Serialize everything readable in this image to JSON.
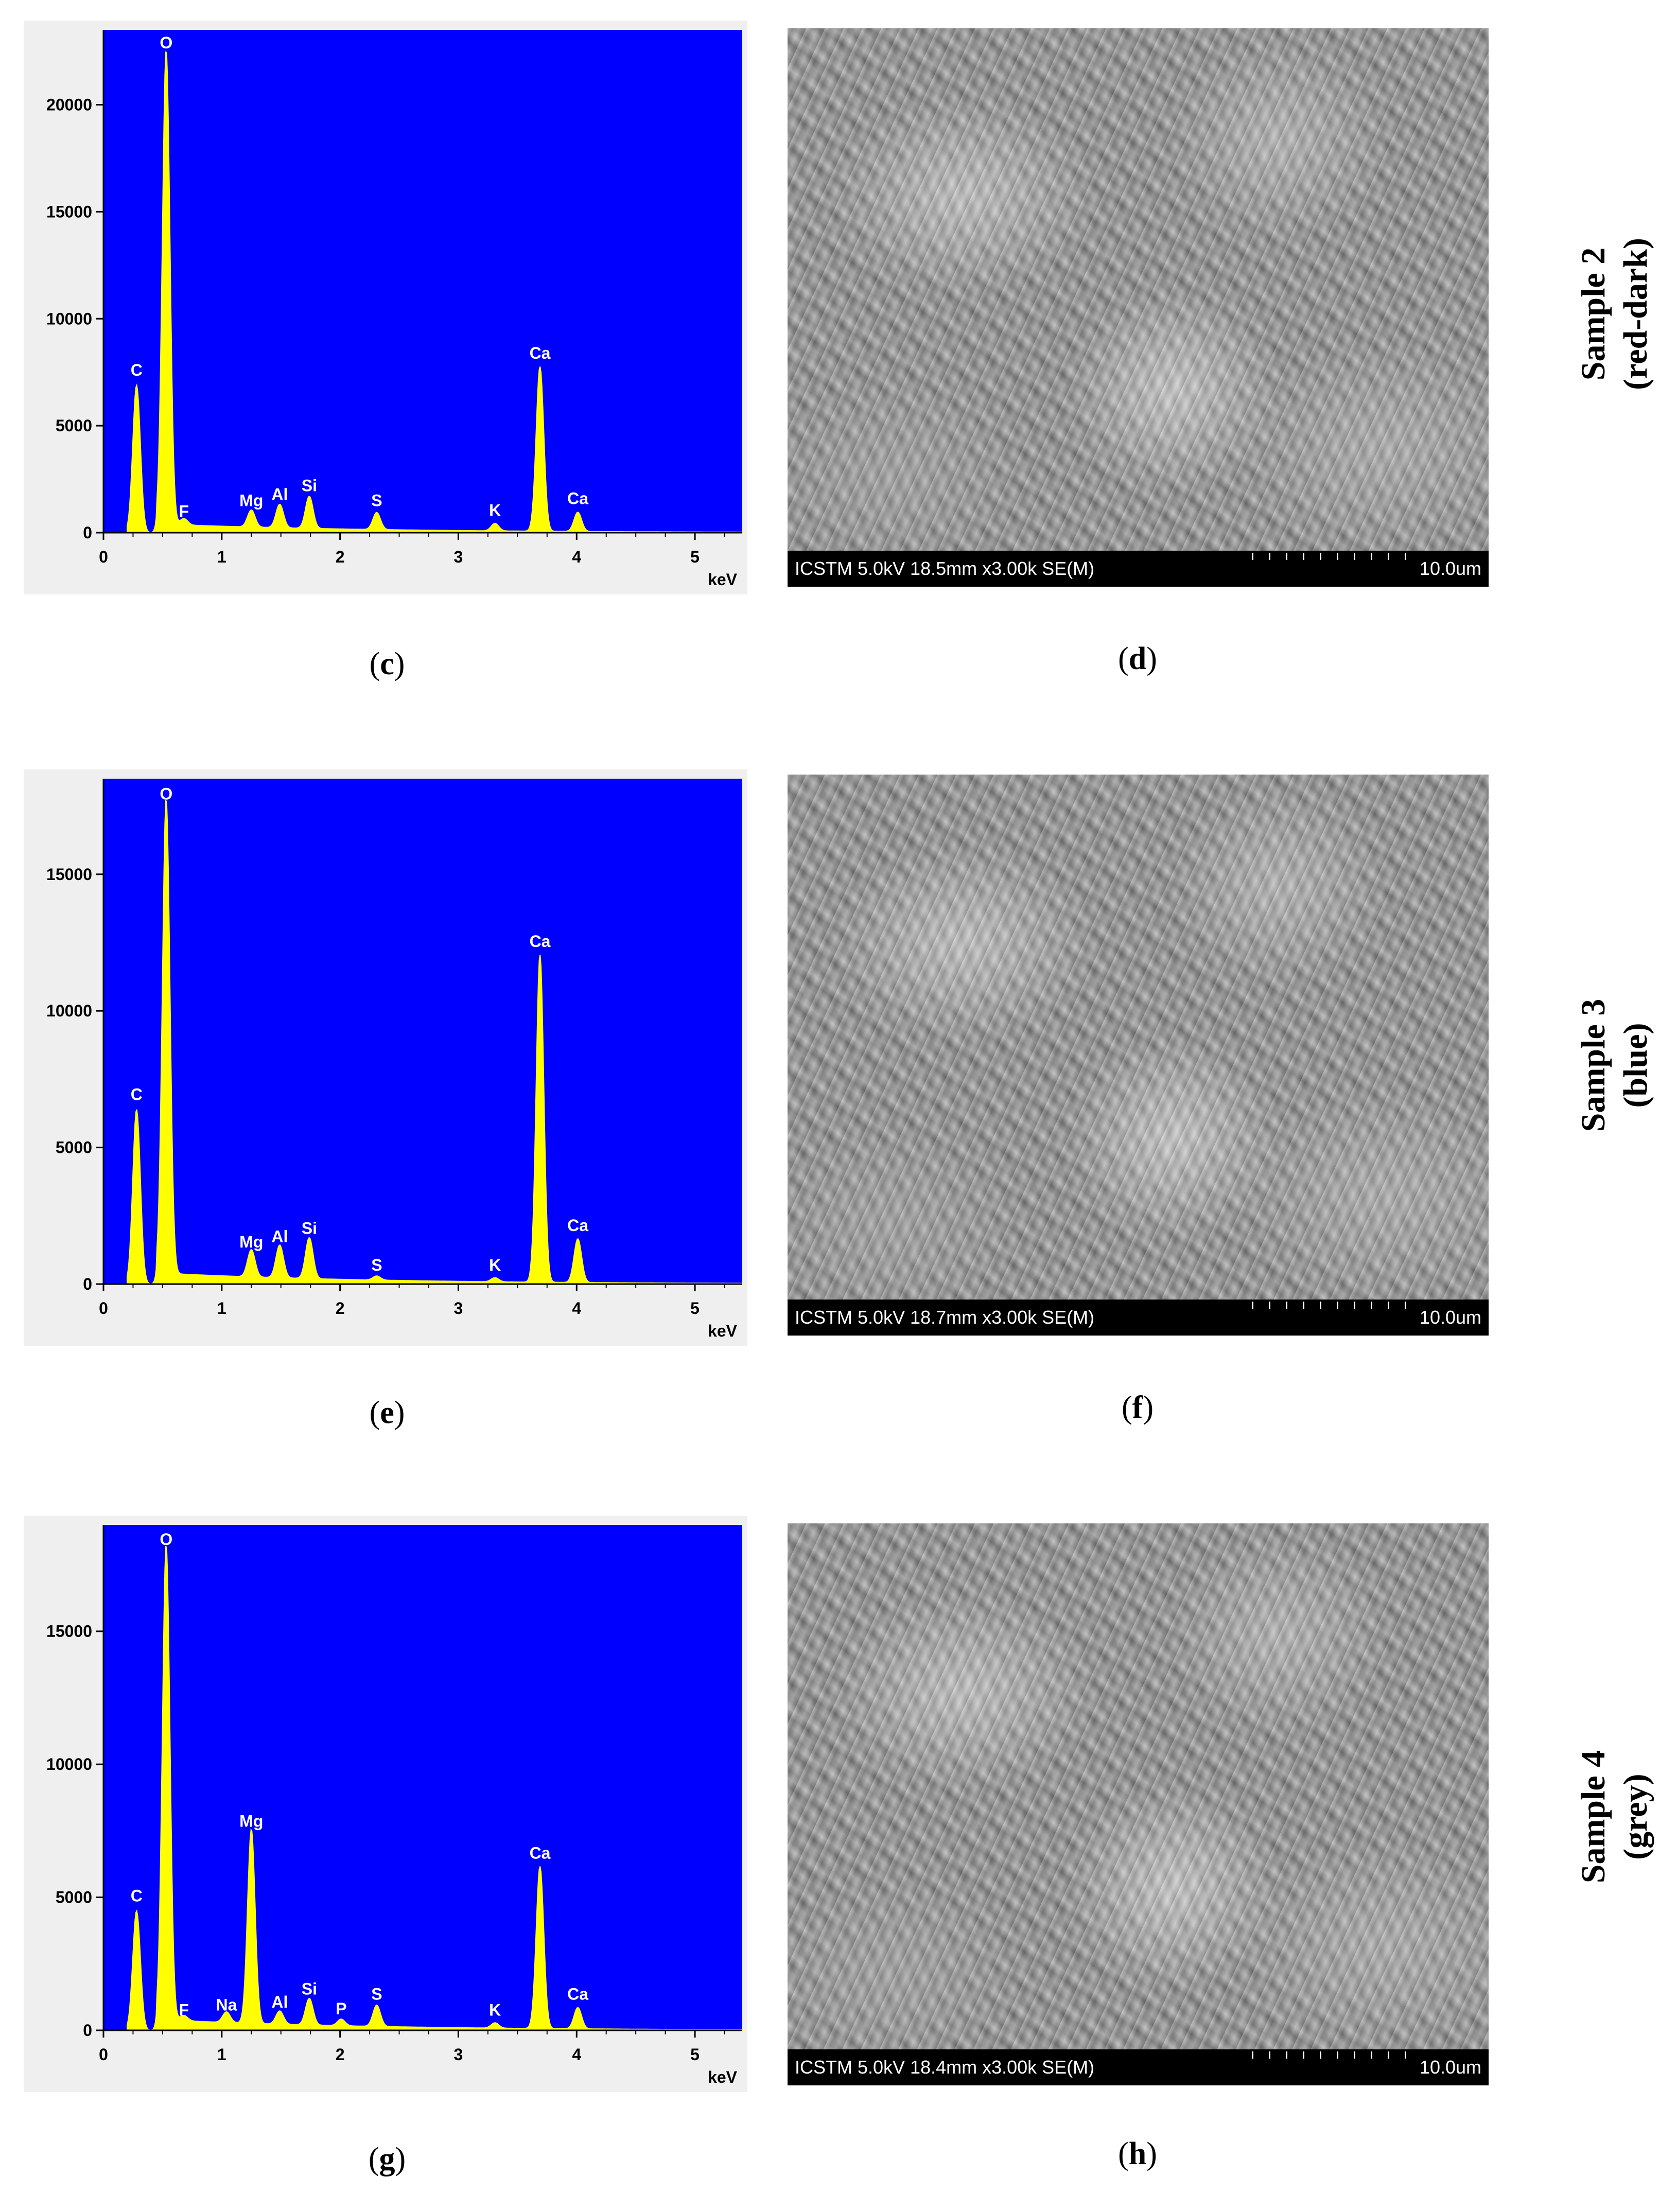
{
  "panels": [
    {
      "spectrum_caption": "c",
      "sem_caption": "d",
      "sem_info": "ICSTM 5.0kV 18.5mm x3.00k SE(M)",
      "sem_scale": "10.0um",
      "sample_name": "Sample 2",
      "sample_color": "(red-dark)"
    },
    {
      "spectrum_caption": "e",
      "sem_caption": "f",
      "sem_info": "ICSTM 5.0kV 18.7mm x3.00k SE(M)",
      "sem_scale": "10.0um",
      "sample_name": "Sample 3",
      "sample_color": "(blue)"
    },
    {
      "spectrum_caption": "g",
      "sem_caption": "h",
      "sem_info": "ICSTM 5.0kV 18.4mm x3.00k SE(M)",
      "sem_scale": "10.0um",
      "sample_name": "Sample 4",
      "sample_color": "(grey)"
    }
  ],
  "colors": {
    "plot_background": "#0000ff",
    "spectrum_fill": "#ffff00",
    "axis_text": "#ffffff"
  },
  "chart_data": [
    {
      "type": "area",
      "xlabel": "keV",
      "ylabel": "",
      "xlim": [
        0,
        5.4
      ],
      "ylim": [
        0,
        23500
      ],
      "x_ticks": [
        0,
        1,
        2,
        3,
        4,
        5
      ],
      "y_ticks": [
        0,
        5000,
        10000,
        15000,
        20000
      ],
      "peaks": [
        {
          "element": "C",
          "x": 0.28,
          "y": 6900
        },
        {
          "element": "O",
          "x": 0.53,
          "y": 22200
        },
        {
          "element": "F",
          "x": 0.68,
          "y": 300
        },
        {
          "element": "Mg",
          "x": 1.25,
          "y": 800
        },
        {
          "element": "Al",
          "x": 1.49,
          "y": 1100
        },
        {
          "element": "Si",
          "x": 1.74,
          "y": 1500
        },
        {
          "element": "S",
          "x": 2.31,
          "y": 800
        },
        {
          "element": "K",
          "x": 3.31,
          "y": 350
        },
        {
          "element": "Ca",
          "x": 3.69,
          "y": 7700
        },
        {
          "element": "Ca",
          "x": 4.01,
          "y": 900
        }
      ]
    },
    {
      "type": "area",
      "xlabel": "keV",
      "ylabel": "",
      "xlim": [
        0,
        5.4
      ],
      "ylim": [
        0,
        18500
      ],
      "x_ticks": [
        0,
        1,
        2,
        3,
        4,
        5
      ],
      "y_ticks": [
        0,
        5000,
        10000,
        15000
      ],
      "peaks": [
        {
          "element": "C",
          "x": 0.28,
          "y": 6400
        },
        {
          "element": "O",
          "x": 0.53,
          "y": 17400
        },
        {
          "element": "Mg",
          "x": 1.25,
          "y": 1000
        },
        {
          "element": "Al",
          "x": 1.49,
          "y": 1200
        },
        {
          "element": "Si",
          "x": 1.74,
          "y": 1500
        },
        {
          "element": "S",
          "x": 2.31,
          "y": 150
        },
        {
          "element": "K",
          "x": 3.31,
          "y": 150
        },
        {
          "element": "Ca",
          "x": 3.69,
          "y": 12000
        },
        {
          "element": "Ca",
          "x": 4.01,
          "y": 1600
        }
      ]
    },
    {
      "type": "area",
      "xlabel": "keV",
      "ylabel": "",
      "xlim": [
        0,
        5.4
      ],
      "ylim": [
        0,
        19000
      ],
      "x_ticks": [
        0,
        1,
        2,
        3,
        4,
        5
      ],
      "y_ticks": [
        0,
        5000,
        10000,
        15000
      ],
      "peaks": [
        {
          "element": "C",
          "x": 0.28,
          "y": 4500
        },
        {
          "element": "O",
          "x": 0.53,
          "y": 17900
        },
        {
          "element": "F",
          "x": 0.68,
          "y": 200
        },
        {
          "element": "Na",
          "x": 1.04,
          "y": 400
        },
        {
          "element": "Mg",
          "x": 1.25,
          "y": 7300
        },
        {
          "element": "Al",
          "x": 1.49,
          "y": 500
        },
        {
          "element": "Si",
          "x": 1.74,
          "y": 1000
        },
        {
          "element": "P",
          "x": 2.01,
          "y": 250
        },
        {
          "element": "S",
          "x": 2.31,
          "y": 800
        },
        {
          "element": "K",
          "x": 3.31,
          "y": 200
        },
        {
          "element": "Ca",
          "x": 3.69,
          "y": 6100
        },
        {
          "element": "Ca",
          "x": 4.01,
          "y": 800
        }
      ]
    }
  ]
}
